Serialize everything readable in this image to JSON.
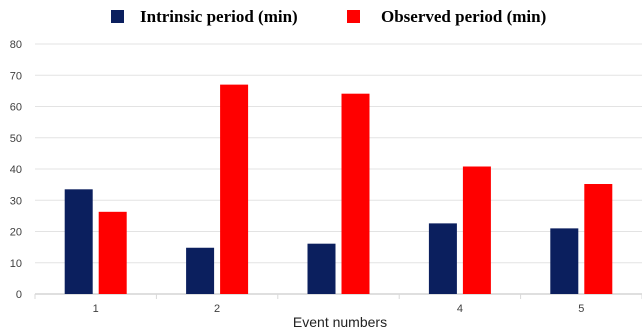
{
  "chart_data": {
    "type": "bar",
    "categories": [
      "1",
      "2",
      "",
      "4",
      "5"
    ],
    "series": [
      {
        "name": "Intrinsic period (min)",
        "color": "#0b1f5e",
        "values": [
          33.5,
          14.8,
          16.1,
          22.6,
          21.0
        ]
      },
      {
        "name": "Observed period (min)",
        "color": "#ff0000",
        "values": [
          26.3,
          67.0,
          64.1,
          40.8,
          35.2
        ]
      }
    ],
    "title": "",
    "xlabel": "Event numbers",
    "ylabel": "",
    "ylim": [
      0,
      80
    ],
    "yticks": [
      0,
      10,
      20,
      30,
      40,
      50,
      60,
      70,
      80
    ],
    "grid": true,
    "legend_position": "top"
  }
}
